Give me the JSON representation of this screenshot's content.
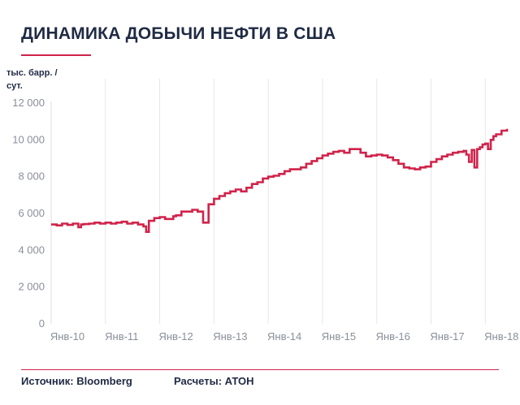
{
  "header": {
    "title": "ДИНАМИКА ДОБЫЧИ НЕФТИ В США"
  },
  "footer": {
    "source": "Источник: Bloomberg",
    "calc": "Расчеты: АТОН"
  },
  "colors": {
    "line": "#d0234a",
    "grid": "#e6e6e6",
    "text": "#1f2a44",
    "tick": "#8a8f9a"
  },
  "chart_data": {
    "type": "line",
    "title": "ДИНАМИКА ДОБЫЧИ НЕФТИ В США",
    "ylabel": "тыс. барр. / сут.",
    "xlabel": "",
    "ylim": [
      0,
      12000
    ],
    "yticks": [
      0,
      2000,
      4000,
      6000,
      8000,
      10000,
      12000
    ],
    "ytick_labels": [
      "0",
      "2 000",
      "4 000",
      "6 000",
      "8 000",
      "10 000",
      "12 000"
    ],
    "xlim": [
      2010.0,
      2018.4
    ],
    "xticks": [
      2010,
      2011,
      2012,
      2013,
      2014,
      2015,
      2016,
      2017,
      2018
    ],
    "xtick_labels": [
      "Янв-10",
      "Янв-11",
      "Янв-12",
      "Янв-13",
      "Янв-14",
      "Янв-15",
      "Янв-16",
      "Янв-17",
      "Янв-18"
    ],
    "grid": {
      "vertical": true,
      "horizontal": false
    },
    "series": [
      {
        "name": "",
        "x": [
          2010.0,
          2010.1,
          2010.2,
          2010.3,
          2010.4,
          2010.5,
          2010.55,
          2010.6,
          2010.7,
          2010.8,
          2010.9,
          2011.0,
          2011.1,
          2011.2,
          2011.3,
          2011.4,
          2011.5,
          2011.6,
          2011.7,
          2011.75,
          2011.8,
          2011.9,
          2012.0,
          2012.1,
          2012.2,
          2012.25,
          2012.3,
          2012.4,
          2012.5,
          2012.6,
          2012.7,
          2012.8,
          2012.9,
          2013.0,
          2013.1,
          2013.2,
          2013.3,
          2013.4,
          2013.5,
          2013.6,
          2013.7,
          2013.8,
          2013.9,
          2014.0,
          2014.1,
          2014.2,
          2014.3,
          2014.4,
          2014.5,
          2014.6,
          2014.7,
          2014.8,
          2014.9,
          2015.0,
          2015.1,
          2015.2,
          2015.3,
          2015.4,
          2015.5,
          2015.6,
          2015.7,
          2015.8,
          2015.9,
          2016.0,
          2016.1,
          2016.2,
          2016.3,
          2016.4,
          2016.5,
          2016.6,
          2016.7,
          2016.8,
          2016.9,
          2017.0,
          2017.1,
          2017.2,
          2017.3,
          2017.4,
          2017.5,
          2017.6,
          2017.65,
          2017.7,
          2017.75,
          2017.8,
          2017.85,
          2017.9,
          2017.95,
          2018.0,
          2018.05,
          2018.1,
          2018.15,
          2018.2,
          2018.3,
          2018.4
        ],
        "y": [
          5400,
          5350,
          5450,
          5380,
          5450,
          5250,
          5400,
          5420,
          5450,
          5500,
          5450,
          5500,
          5450,
          5500,
          5550,
          5450,
          5500,
          5400,
          5300,
          5000,
          5600,
          5750,
          5800,
          5700,
          5700,
          5850,
          5900,
          6100,
          6100,
          6200,
          6100,
          5500,
          6500,
          6800,
          6950,
          7100,
          7200,
          7300,
          7200,
          7400,
          7600,
          7700,
          7900,
          8000,
          8050,
          8150,
          8300,
          8400,
          8400,
          8500,
          8700,
          8850,
          9000,
          9150,
          9250,
          9350,
          9400,
          9300,
          9500,
          9500,
          9300,
          9100,
          9150,
          9200,
          9150,
          9050,
          8900,
          8700,
          8500,
          8450,
          8400,
          8500,
          8550,
          8800,
          8950,
          9100,
          9200,
          9300,
          9350,
          9400,
          9200,
          8800,
          9450,
          8500,
          9500,
          9600,
          9750,
          9800,
          9500,
          10000,
          10200,
          10300,
          10500,
          10600
        ]
      }
    ]
  }
}
